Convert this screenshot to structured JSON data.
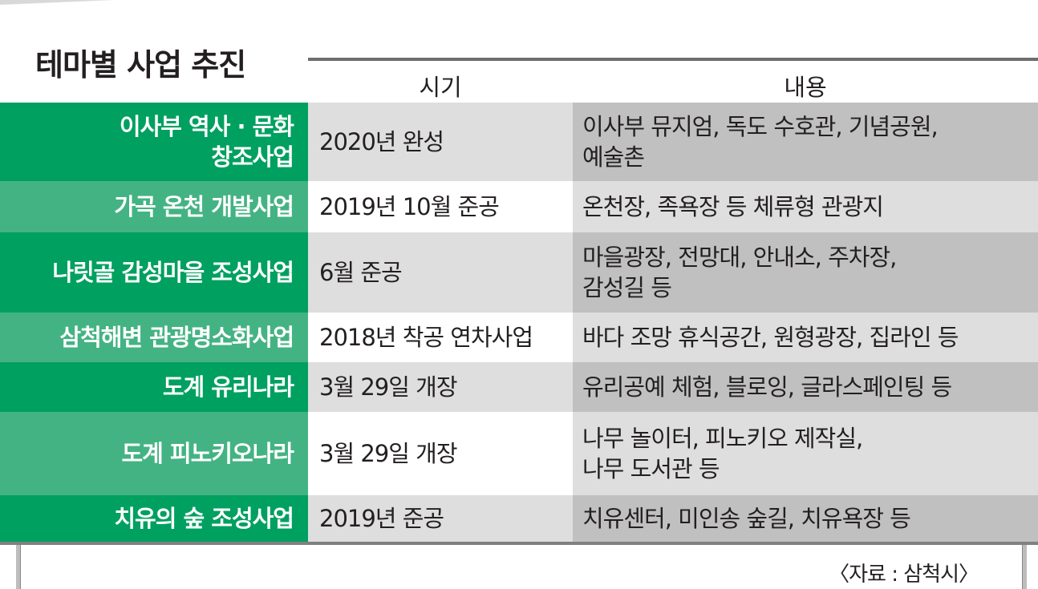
{
  "title": "테마별 사업 추진",
  "columns": {
    "when": "시기",
    "what": "내용"
  },
  "rows": [
    {
      "name": [
        "이사부 역사 · 문화",
        "창조사업"
      ],
      "when": "2020년 완성",
      "what": [
        "이사부 뮤지엄, 독도 수호관, 기념공원,",
        "예술촌"
      ]
    },
    {
      "name": [
        "가곡 온천 개발사업"
      ],
      "when": "2019년 10월 준공",
      "what": [
        "온천장, 족욕장 등 체류형 관광지"
      ]
    },
    {
      "name": [
        "나릿골 감성마을 조성사업"
      ],
      "when": "6월 준공",
      "what": [
        "마을광장, 전망대, 안내소, 주차장,",
        "감성길 등"
      ]
    },
    {
      "name": [
        "삼척해변 관광명소화사업"
      ],
      "when": "2018년 착공 연차사업",
      "what": [
        "바다 조망 휴식공간, 원형광장, 집라인 등"
      ]
    },
    {
      "name": [
        "도계 유리나라"
      ],
      "when": "3월 29일 개장",
      "what": [
        "유리공예 체험, 블로잉, 글라스페인팅 등"
      ]
    },
    {
      "name": [
        "도계 피노키오나라"
      ],
      "when": "3월 29일 개장",
      "what": [
        "나무 놀이터, 피노키오 제작실,",
        "나무 도서관 등"
      ]
    },
    {
      "name": [
        "치유의 숲 조성사업"
      ],
      "when": "2019년 준공",
      "what": [
        "치유센터, 미인송 숲길, 치유욕장 등"
      ]
    }
  ],
  "source": "〈자료 : 삼척시〉",
  "colors": {
    "green_dark": "#00a060",
    "green_light": "#44b383",
    "gray": "#dedede",
    "gray_dark": "#c0c0c0"
  }
}
